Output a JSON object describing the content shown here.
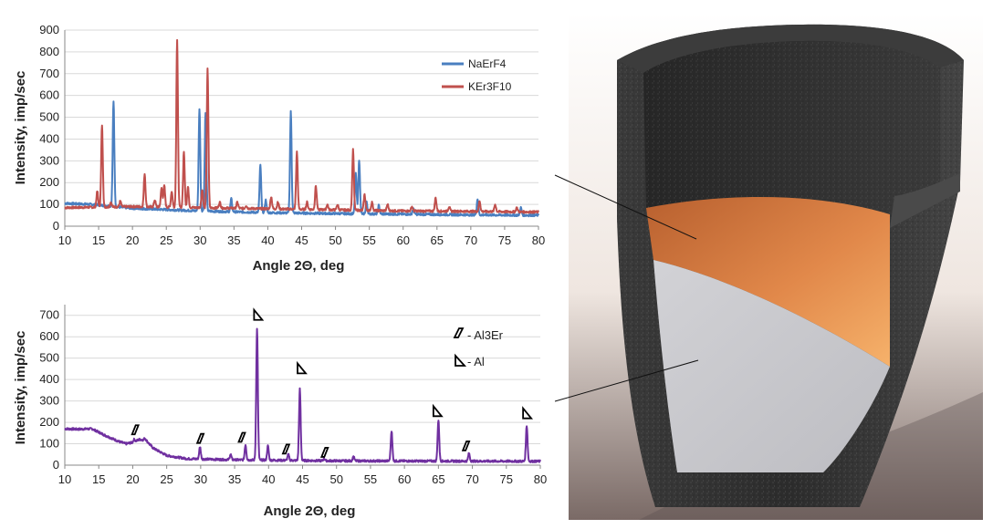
{
  "chart_data": [
    {
      "type": "line",
      "title": "",
      "xlabel": "Angle 2Θ, deg",
      "ylabel": "Intensity, imp/sec",
      "xlim": [
        10,
        80
      ],
      "ylim": [
        0,
        900
      ],
      "xticks": [
        "10",
        "15",
        "20",
        "25",
        "30",
        "35",
        "40",
        "45",
        "50",
        "55",
        "60",
        "65",
        "70",
        "75",
        "80"
      ],
      "yticks": [
        "0",
        "100",
        "200",
        "300",
        "400",
        "500",
        "600",
        "700",
        "800",
        "900"
      ],
      "grid": "horizontal",
      "legend": "top-right",
      "series": [
        {
          "name": "NaErF4",
          "color": "#4a7fc0",
          "baseline": [
            [
              10,
              105
            ],
            [
              14,
              100
            ],
            [
              20,
              82
            ],
            [
              30,
              70
            ],
            [
              40,
              62
            ],
            [
              50,
              58
            ],
            [
              60,
              55
            ],
            [
              70,
              52
            ],
            [
              80,
              50
            ]
          ],
          "peaks": [
            [
              17.2,
              570
            ],
            [
              29.9,
              540
            ],
            [
              30.8,
              520
            ],
            [
              34.6,
              125
            ],
            [
              38.9,
              280
            ],
            [
              39.7,
              120
            ],
            [
              43.4,
              525
            ],
            [
              53.0,
              240
            ],
            [
              53.5,
              305
            ],
            [
              54.6,
              110
            ],
            [
              56.4,
              95
            ],
            [
              61.5,
              80
            ],
            [
              71.0,
              125
            ],
            [
              77.4,
              85
            ]
          ]
        },
        {
          "name": "KEr3F10",
          "color": "#c0504d",
          "baseline": [
            [
              10,
              85
            ],
            [
              20,
              90
            ],
            [
              30,
              85
            ],
            [
              40,
              80
            ],
            [
              50,
              75
            ],
            [
              60,
              70
            ],
            [
              70,
              68
            ],
            [
              80,
              65
            ]
          ],
          "peaks": [
            [
              14.8,
              160
            ],
            [
              15.5,
              465
            ],
            [
              16.8,
              110
            ],
            [
              18.2,
              115
            ],
            [
              21.8,
              240
            ],
            [
              23.3,
              120
            ],
            [
              24.3,
              175
            ],
            [
              24.7,
              185
            ],
            [
              25.8,
              160
            ],
            [
              26.6,
              855
            ],
            [
              27.6,
              340
            ],
            [
              28.2,
              180
            ],
            [
              30.3,
              170
            ],
            [
              31.1,
              720
            ],
            [
              32.9,
              110
            ],
            [
              35.5,
              110
            ],
            [
              36.8,
              95
            ],
            [
              40.5,
              135
            ],
            [
              41.5,
              110
            ],
            [
              44.3,
              340
            ],
            [
              45.8,
              110
            ],
            [
              47.1,
              185
            ],
            [
              48.8,
              100
            ],
            [
              50.3,
              100
            ],
            [
              52.6,
              350
            ],
            [
              54.3,
              145
            ],
            [
              55.4,
              110
            ],
            [
              57.7,
              100
            ],
            [
              61.3,
              90
            ],
            [
              64.8,
              130
            ],
            [
              66.8,
              90
            ],
            [
              71.3,
              115
            ],
            [
              73.6,
              100
            ],
            [
              76.8,
              85
            ]
          ]
        }
      ]
    },
    {
      "type": "line",
      "title": "",
      "xlabel": "Angle 2Θ, deg",
      "ylabel": "Intensity, imp/sec",
      "xlim": [
        10,
        80
      ],
      "ylim": [
        0,
        750
      ],
      "xticks": [
        "10",
        "15",
        "20",
        "25",
        "30",
        "35",
        "40",
        "45",
        "50",
        "55",
        "60",
        "65",
        "70",
        "75",
        "80"
      ],
      "yticks": [
        "0",
        "100",
        "200",
        "300",
        "400",
        "500",
        "600",
        "700"
      ],
      "grid": "horizontal",
      "legend": "top-right",
      "series": [
        {
          "color": "#7030a0",
          "baseline": [
            [
              10,
              170
            ],
            [
              12,
              168
            ],
            [
              14,
              170
            ],
            [
              16,
              138
            ],
            [
              18,
              110
            ],
            [
              19,
              100
            ],
            [
              20,
              106
            ],
            [
              21,
              120
            ],
            [
              22,
              115
            ],
            [
              23,
              80
            ],
            [
              25,
              45
            ],
            [
              28,
              30
            ],
            [
              35,
              25
            ],
            [
              50,
              20
            ],
            [
              80,
              18
            ]
          ],
          "peaks": [
            [
              20.2,
              120
            ],
            [
              21.8,
              125
            ],
            [
              29.9,
              85
            ],
            [
              34.4,
              50
            ],
            [
              36.6,
              95
            ],
            [
              38.3,
              640
            ],
            [
              39.9,
              90
            ],
            [
              42.9,
              50
            ],
            [
              44.6,
              355
            ],
            [
              48.2,
              30
            ],
            [
              52.5,
              40
            ],
            [
              58.1,
              160
            ],
            [
              65.0,
              210
            ],
            [
              69.5,
              55
            ],
            [
              78.0,
              185
            ]
          ]
        }
      ],
      "markers": [
        {
          "symbol": "Al3Er",
          "x": 20.3,
          "y": 165
        },
        {
          "symbol": "Al3Er",
          "x": 29.9,
          "y": 125
        },
        {
          "symbol": "Al3Er",
          "x": 36.0,
          "y": 130
        },
        {
          "symbol": "Al3Er",
          "x": 42.5,
          "y": 75
        },
        {
          "symbol": "Al3Er",
          "x": 48.2,
          "y": 60
        },
        {
          "symbol": "Al3Er",
          "x": 69.0,
          "y": 90
        },
        {
          "symbol": "Al",
          "x": 38.4,
          "y": 700
        },
        {
          "symbol": "Al",
          "x": 44.8,
          "y": 450
        },
        {
          "symbol": "Al",
          "x": 64.8,
          "y": 250
        },
        {
          "symbol": "Al",
          "x": 78.0,
          "y": 240
        }
      ],
      "legend_items": [
        {
          "symbol": "Al3Er",
          "label": "- Al3Er"
        },
        {
          "symbol": "Al",
          "label": "- Al"
        }
      ]
    }
  ],
  "illustration": {
    "subject": "crucible-cutaway",
    "colors": {
      "crucible_wall": "#333333",
      "orange_layer_top": "#c86a35",
      "orange_layer_bottom": "#f0a55c",
      "grey_layer": "#c8c8cc",
      "background_top": "#ffffff",
      "background_bottom": "#7a6a66"
    }
  }
}
